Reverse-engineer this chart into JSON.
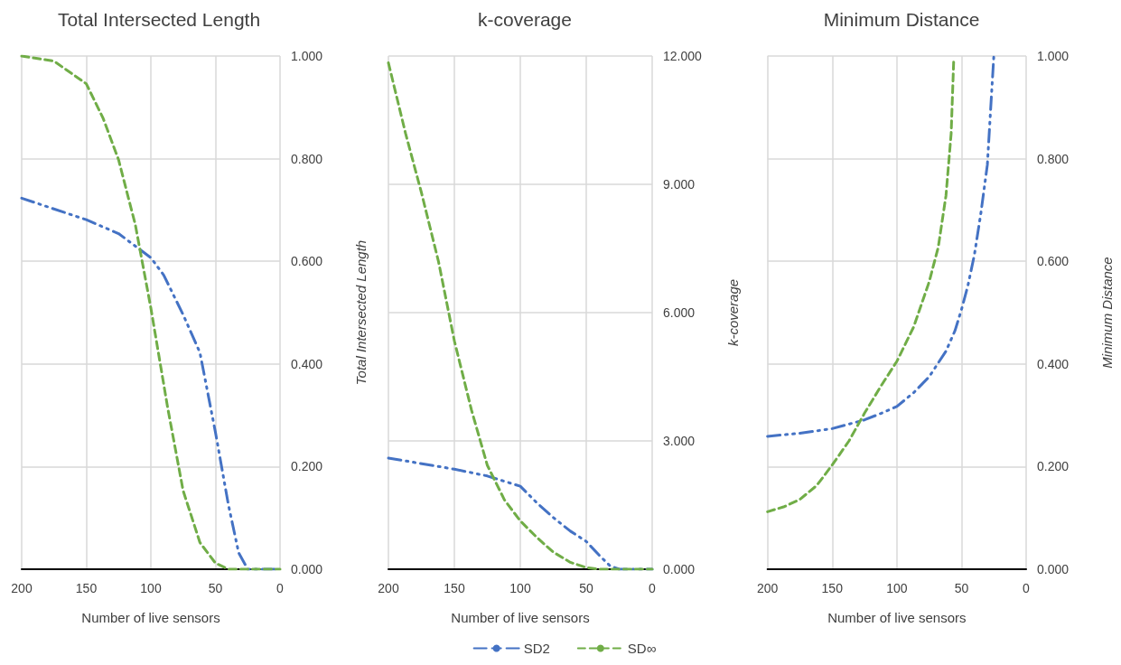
{
  "chart_data": [
    {
      "type": "line",
      "title": "Total Intersected Length",
      "xlabel": "Number of live sensors",
      "ylabel": "Total Intersected Length",
      "xlim": [
        200,
        0
      ],
      "xticks": [
        200,
        150,
        100,
        50,
        0
      ],
      "ylim": [
        0,
        1
      ],
      "yticks": [
        {
          "value": 0,
          "label": "0.000"
        },
        {
          "value": 0.2,
          "label": "0.200"
        },
        {
          "value": 0.4,
          "label": "0.400"
        },
        {
          "value": 0.6,
          "label": "0.600"
        },
        {
          "value": 0.8,
          "label": "0.800"
        },
        {
          "value": 1,
          "label": "1.000"
        }
      ],
      "grid": true,
      "legend": false,
      "marker": "none",
      "series": [
        {
          "color": "#4472c4",
          "line_style": "dashdot",
          "x": [
            200,
            150,
            125,
            100,
            90,
            75,
            62,
            50,
            40,
            32,
            25,
            0
          ],
          "values": [
            0.723,
            0.681,
            0.654,
            0.607,
            0.573,
            0.496,
            0.422,
            0.267,
            0.126,
            0.032,
            0,
            0
          ]
        },
        {
          "color": "#70ad47",
          "line_style": "dashed",
          "x": [
            200,
            175,
            150,
            137,
            125,
            112,
            100,
            87,
            75,
            62,
            50,
            40,
            0
          ],
          "values": [
            1.0,
            0.99,
            0.946,
            0.879,
            0.798,
            0.671,
            0.509,
            0.315,
            0.153,
            0.052,
            0.012,
            0,
            0
          ]
        }
      ]
    },
    {
      "type": "line",
      "title": "k-coverage",
      "xlabel": "Number of live sensors",
      "ylabel": "k-coverage",
      "xlim": [
        200,
        0
      ],
      "xticks": [
        200,
        150,
        100,
        50,
        0
      ],
      "ylim": [
        0,
        12
      ],
      "yticks": [
        {
          "value": 0,
          "label": "0.000"
        },
        {
          "value": 3,
          "label": "3.000"
        },
        {
          "value": 6,
          "label": "6.000"
        },
        {
          "value": 9,
          "label": "9.000"
        },
        {
          "value": 12,
          "label": "12.000"
        }
      ],
      "grid": true,
      "legend": "bottom",
      "marker": "none",
      "series": [
        {
          "name": "SD2",
          "color": "#4472c4",
          "line_style": "dashdot",
          "x": [
            200,
            150,
            125,
            100,
            87,
            75,
            62,
            50,
            40,
            32,
            25,
            0
          ],
          "values": [
            2.6,
            2.34,
            2.18,
            1.94,
            1.54,
            1.21,
            0.89,
            0.65,
            0.32,
            0.08,
            0,
            0
          ]
        },
        {
          "name": "SD∞",
          "color": "#70ad47",
          "line_style": "dashed",
          "x": [
            200,
            187,
            175,
            162,
            150,
            137,
            125,
            112,
            100,
            87,
            75,
            62,
            50,
            40,
            0
          ],
          "values": [
            11.84,
            10.19,
            8.81,
            7.19,
            5.34,
            3.72,
            2.43,
            1.62,
            1.13,
            0.73,
            0.4,
            0.16,
            0.04,
            0,
            0
          ]
        }
      ]
    },
    {
      "type": "line",
      "title": "Minimum Distance",
      "xlabel": "Number of live sensors",
      "ylabel": "Minimum Distance",
      "xlim": [
        200,
        0
      ],
      "xticks": [
        200,
        150,
        100,
        50,
        0
      ],
      "ylim": [
        0,
        1
      ],
      "yticks": [
        {
          "value": 0,
          "label": "0.000"
        },
        {
          "value": 0.2,
          "label": "0.200"
        },
        {
          "value": 0.4,
          "label": "0.400"
        },
        {
          "value": 0.6,
          "label": "0.600"
        },
        {
          "value": 0.8,
          "label": "0.800"
        },
        {
          "value": 1,
          "label": "1.000"
        }
      ],
      "grid": true,
      "legend": false,
      "marker": "none",
      "series": [
        {
          "color": "#4472c4",
          "line_style": "dashdot",
          "x": [
            200,
            175,
            150,
            125,
            112,
            100,
            87,
            75,
            62,
            55,
            50,
            45,
            40,
            35,
            30,
            27,
            25
          ],
          "values": [
            0.259,
            0.265,
            0.274,
            0.291,
            0.304,
            0.317,
            0.344,
            0.375,
            0.425,
            0.465,
            0.506,
            0.553,
            0.613,
            0.694,
            0.788,
            0.916,
            1.0
          ]
        },
        {
          "color": "#70ad47",
          "line_style": "dashed",
          "x": [
            200,
            187,
            175,
            162,
            150,
            137,
            125,
            112,
            100,
            87,
            75,
            68,
            62,
            58,
            56
          ],
          "values": [
            0.112,
            0.122,
            0.136,
            0.163,
            0.203,
            0.25,
            0.304,
            0.358,
            0.405,
            0.472,
            0.56,
            0.627,
            0.728,
            0.849,
            0.993
          ]
        }
      ]
    }
  ]
}
